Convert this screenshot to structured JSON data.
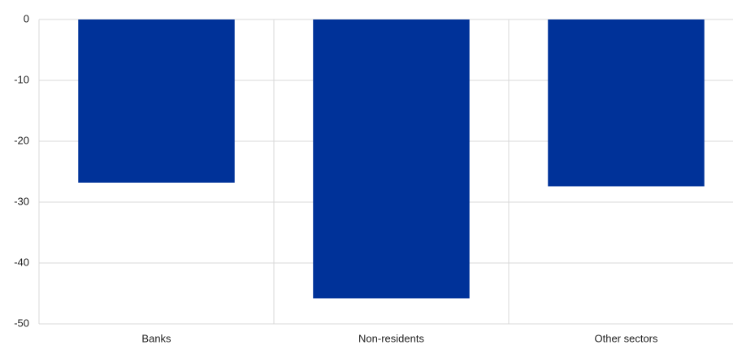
{
  "chart_data": {
    "type": "bar",
    "categories": [
      "Banks",
      "Non-residents",
      "Other sectors"
    ],
    "values": [
      -26.8,
      -45.8,
      -27.4
    ],
    "color": "#003299",
    "ylim": [
      -50,
      0
    ],
    "yticks": [
      0,
      -10,
      -20,
      -30,
      -40,
      -50
    ],
    "grid": true
  }
}
